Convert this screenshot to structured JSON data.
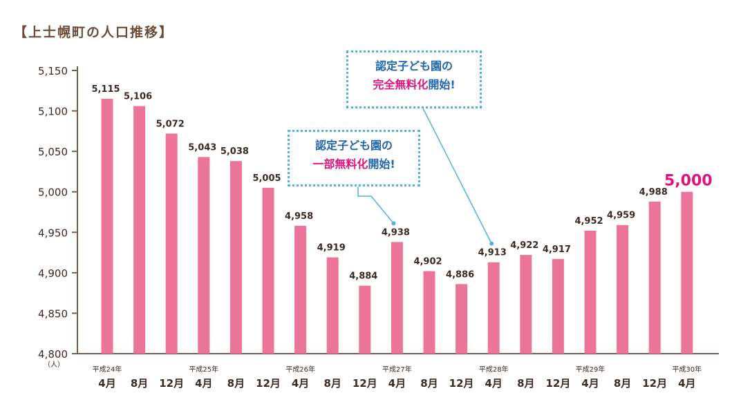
{
  "title": "【上士幌町の人口推移】",
  "chart_data": {
    "type": "bar",
    "title": "【上士幌町の人口推移】",
    "ylabel": "（人）",
    "ylim": [
      4800,
      5150
    ],
    "yticks": [
      4800,
      4850,
      4900,
      4950,
      5000,
      5050,
      5100,
      5150
    ],
    "ytick_labels": [
      "4,800",
      "4,850",
      "4,900",
      "4,950",
      "5,000",
      "5,050",
      "5,100",
      "5,150"
    ],
    "categories": [
      "4月",
      "8月",
      "12月",
      "4月",
      "8月",
      "12月",
      "4月",
      "8月",
      "12月",
      "4月",
      "8月",
      "12月",
      "4月",
      "8月",
      "12月",
      "4月",
      "8月",
      "12月",
      "4月"
    ],
    "values": [
      5115,
      5106,
      5072,
      5043,
      5038,
      5005,
      4958,
      4919,
      4884,
      4938,
      4902,
      4886,
      4913,
      4922,
      4917,
      4952,
      4959,
      4988,
      5000
    ],
    "value_labels": [
      "5,115",
      "5,106",
      "5,072",
      "5,043",
      "5,038",
      "5,005",
      "4,958",
      "4,919",
      "4,884",
      "4,938",
      "4,902",
      "4,886",
      "4,913",
      "4,922",
      "4,917",
      "4,952",
      "4,959",
      "4,988",
      "5,000"
    ],
    "year_labels": [
      {
        "index": 0,
        "label": "平成24年"
      },
      {
        "index": 3,
        "label": "平成25年"
      },
      {
        "index": 6,
        "label": "平成26年"
      },
      {
        "index": 9,
        "label": "平成27年"
      },
      {
        "index": 12,
        "label": "平成28年"
      },
      {
        "index": 15,
        "label": "平成29年"
      },
      {
        "index": 18,
        "label": "平成30年"
      }
    ],
    "highlight_index": 18,
    "annotations": [
      {
        "target_index": 9,
        "line1": "認定子ども園の",
        "line2_pink": "一部無料化",
        "line2_rest": "開始!"
      },
      {
        "target_index": 12,
        "line1": "認定子ども園の",
        "line2_pink": "完全無料化",
        "line2_rest": "開始!"
      }
    ]
  },
  "colors": {
    "bar": "#ec7499",
    "axis": "#7a5a4a",
    "text": "#3a2a22",
    "highlight": "#e0127c",
    "callout_border": "#4fb3df",
    "callout_blue": "#1f66ad"
  }
}
